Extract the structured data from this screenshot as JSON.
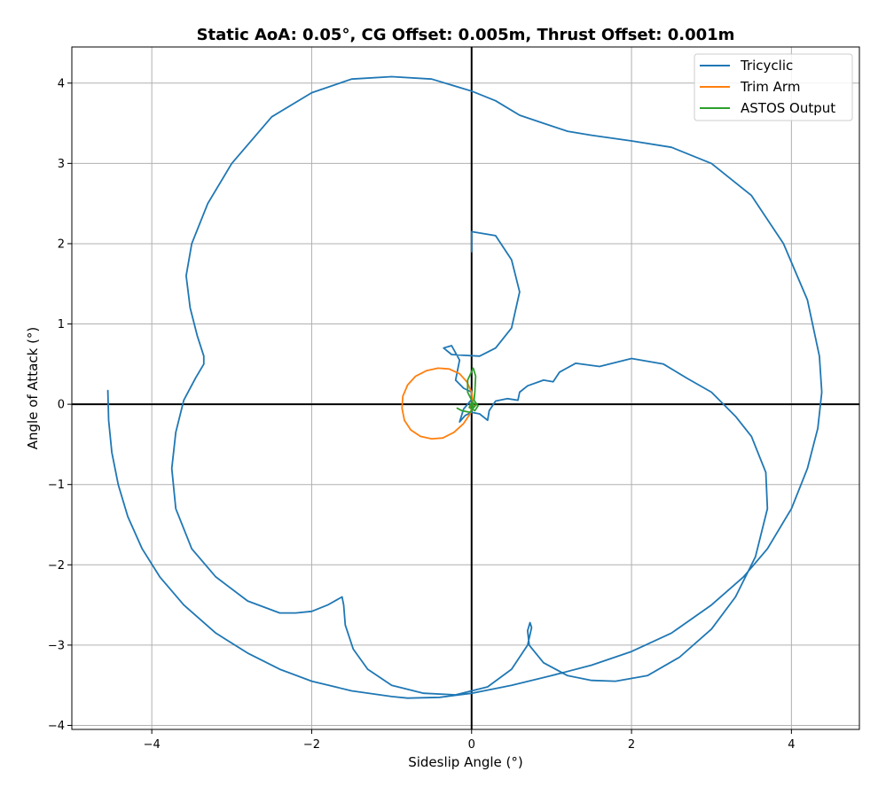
{
  "chart_data": {
    "type": "line",
    "title": "Static AoA: 0.05°, CG Offset: 0.005m, Thrust Offset: 0.001m",
    "xlabel": "Sideslip Angle (°)",
    "ylabel": "Angle of Attack (°)",
    "xlim": [
      -5.0,
      4.85
    ],
    "ylim": [
      -4.05,
      4.45
    ],
    "xticks": [
      -4,
      -2,
      0,
      2,
      4
    ],
    "yticks": [
      -4,
      -3,
      -2,
      -1,
      0,
      1,
      2,
      3,
      4
    ],
    "grid": true,
    "legend_position": "top-right",
    "series": [
      {
        "name": "Tricyclic",
        "color": "#1f77b4",
        "points": [
          [
            -4.55,
            0.17
          ],
          [
            -4.54,
            -0.2
          ],
          [
            -4.5,
            -0.6
          ],
          [
            -4.42,
            -1.0
          ],
          [
            -4.3,
            -1.4
          ],
          [
            -4.12,
            -1.8
          ],
          [
            -3.9,
            -2.15
          ],
          [
            -3.6,
            -2.5
          ],
          [
            -3.2,
            -2.85
          ],
          [
            -2.8,
            -3.1
          ],
          [
            -2.4,
            -3.3
          ],
          [
            -2.0,
            -3.45
          ],
          [
            -1.5,
            -3.57
          ],
          [
            -1.0,
            -3.64
          ],
          [
            -0.8,
            -3.66
          ],
          [
            -0.4,
            -3.65
          ],
          [
            0.0,
            -3.6
          ],
          [
            0.5,
            -3.5
          ],
          [
            1.0,
            -3.38
          ],
          [
            1.5,
            -3.25
          ],
          [
            2.0,
            -3.08
          ],
          [
            2.5,
            -2.85
          ],
          [
            3.0,
            -2.5
          ],
          [
            3.4,
            -2.15
          ],
          [
            3.7,
            -1.8
          ],
          [
            4.0,
            -1.3
          ],
          [
            4.2,
            -0.8
          ],
          [
            4.33,
            -0.3
          ],
          [
            4.38,
            0.15
          ],
          [
            4.35,
            0.6
          ],
          [
            4.2,
            1.3
          ],
          [
            3.9,
            2.0
          ],
          [
            3.5,
            2.6
          ],
          [
            3.0,
            3.0
          ],
          [
            2.5,
            3.2
          ],
          [
            2.0,
            3.28
          ],
          [
            1.5,
            3.35
          ],
          [
            1.2,
            3.4
          ],
          [
            0.9,
            3.5
          ],
          [
            0.6,
            3.6
          ],
          [
            0.3,
            3.78
          ],
          [
            0.0,
            3.9
          ],
          [
            -0.5,
            4.05
          ],
          [
            -1.0,
            4.08
          ],
          [
            -1.5,
            4.05
          ],
          [
            -2.0,
            3.88
          ],
          [
            -2.5,
            3.58
          ],
          [
            -3.0,
            3.0
          ],
          [
            -3.3,
            2.5
          ],
          [
            -3.5,
            2.0
          ],
          [
            -3.57,
            1.6
          ],
          [
            -3.52,
            1.2
          ],
          [
            -3.43,
            0.85
          ],
          [
            -3.35,
            0.6
          ],
          [
            -3.35,
            0.5
          ],
          [
            -3.45,
            0.33
          ],
          [
            -3.6,
            0.05
          ],
          [
            -3.7,
            -0.35
          ],
          [
            -3.75,
            -0.8
          ],
          [
            -3.7,
            -1.3
          ],
          [
            -3.5,
            -1.8
          ],
          [
            -3.2,
            -2.15
          ],
          [
            -2.8,
            -2.45
          ],
          [
            -2.4,
            -2.6
          ],
          [
            -2.2,
            -2.6
          ],
          [
            -2.0,
            -2.58
          ],
          [
            -1.8,
            -2.5
          ],
          [
            -1.62,
            -2.4
          ],
          [
            -1.6,
            -2.5
          ],
          [
            -1.58,
            -2.75
          ],
          [
            -1.48,
            -3.05
          ],
          [
            -1.3,
            -3.3
          ],
          [
            -1.0,
            -3.5
          ],
          [
            -0.6,
            -3.6
          ],
          [
            -0.2,
            -3.62
          ],
          [
            0.2,
            -3.52
          ],
          [
            0.5,
            -3.3
          ],
          [
            0.7,
            -3.0
          ],
          [
            0.75,
            -2.78
          ],
          [
            0.73,
            -2.72
          ],
          [
            0.7,
            -2.82
          ],
          [
            0.72,
            -3.0
          ],
          [
            0.9,
            -3.22
          ],
          [
            1.2,
            -3.38
          ],
          [
            1.5,
            -3.44
          ],
          [
            1.8,
            -3.45
          ],
          [
            2.2,
            -3.38
          ],
          [
            2.6,
            -3.15
          ],
          [
            3.0,
            -2.8
          ],
          [
            3.3,
            -2.4
          ],
          [
            3.55,
            -1.9
          ],
          [
            3.7,
            -1.3
          ],
          [
            3.68,
            -0.85
          ],
          [
            3.5,
            -0.4
          ],
          [
            3.3,
            -0.15
          ],
          [
            3.0,
            0.15
          ],
          [
            2.7,
            0.32
          ],
          [
            2.4,
            0.5
          ],
          [
            2.0,
            0.57
          ],
          [
            1.6,
            0.47
          ],
          [
            1.3,
            0.51
          ],
          [
            1.1,
            0.4
          ],
          [
            1.02,
            0.28
          ],
          [
            0.9,
            0.3
          ],
          [
            0.7,
            0.23
          ],
          [
            0.6,
            0.15
          ],
          [
            0.58,
            0.05
          ],
          [
            0.45,
            0.07
          ],
          [
            0.3,
            0.04
          ],
          [
            0.22,
            -0.08
          ],
          [
            0.2,
            -0.2
          ],
          [
            0.1,
            -0.12
          ],
          [
            0.0,
            -0.1
          ],
          [
            -0.08,
            -0.14
          ],
          [
            -0.15,
            -0.22
          ],
          [
            -0.1,
            -0.06
          ],
          [
            0.0,
            0.06
          ],
          [
            0.0,
            0.15
          ],
          [
            -0.1,
            0.2
          ],
          [
            -0.2,
            0.3
          ],
          [
            -0.15,
            0.55
          ],
          [
            -0.25,
            0.73
          ],
          [
            -0.35,
            0.7
          ],
          [
            -0.25,
            0.62
          ],
          [
            -0.1,
            0.61
          ],
          [
            0.1,
            0.6
          ],
          [
            0.3,
            0.7
          ],
          [
            0.5,
            0.95
          ],
          [
            0.6,
            1.4
          ],
          [
            0.5,
            1.8
          ],
          [
            0.3,
            2.1
          ],
          [
            0.0,
            2.15
          ],
          [
            0.0,
            1.9
          ]
        ]
      },
      {
        "name": "Trim Arm",
        "color": "#ff7f0e",
        "points": [
          [
            0.02,
            0.0
          ],
          [
            0.0,
            0.15
          ],
          [
            -0.06,
            0.28
          ],
          [
            -0.15,
            0.38
          ],
          [
            -0.28,
            0.44
          ],
          [
            -0.42,
            0.45
          ],
          [
            -0.56,
            0.42
          ],
          [
            -0.7,
            0.35
          ],
          [
            -0.8,
            0.24
          ],
          [
            -0.86,
            0.1
          ],
          [
            -0.87,
            -0.05
          ],
          [
            -0.84,
            -0.2
          ],
          [
            -0.76,
            -0.32
          ],
          [
            -0.64,
            -0.4
          ],
          [
            -0.5,
            -0.43
          ],
          [
            -0.36,
            -0.42
          ],
          [
            -0.22,
            -0.35
          ],
          [
            -0.1,
            -0.24
          ],
          [
            -0.02,
            -0.12
          ],
          [
            0.02,
            0.0
          ],
          [
            0.0,
            0.02
          ],
          [
            -0.02,
            -0.04
          ],
          [
            0.0,
            -0.06
          ],
          [
            0.03,
            -0.02
          ]
        ]
      },
      {
        "name": "ASTOS Output",
        "color": "#2ca02c",
        "points": [
          [
            -0.18,
            -0.05
          ],
          [
            -0.12,
            -0.08
          ],
          [
            -0.02,
            -0.1
          ],
          [
            0.02,
            -0.05
          ],
          [
            0.0,
            0.05
          ],
          [
            -0.05,
            0.15
          ],
          [
            -0.05,
            0.3
          ],
          [
            0.02,
            0.45
          ],
          [
            0.05,
            0.35
          ],
          [
            0.04,
            0.15
          ],
          [
            0.03,
            0.05
          ],
          [
            0.08,
            -0.02
          ],
          [
            0.04,
            -0.08
          ],
          [
            -0.03,
            -0.04
          ],
          [
            0.0,
            0.02
          ],
          [
            0.06,
            0.0
          ],
          [
            0.02,
            -0.05
          ],
          [
            -0.02,
            0.0
          ]
        ]
      }
    ]
  }
}
